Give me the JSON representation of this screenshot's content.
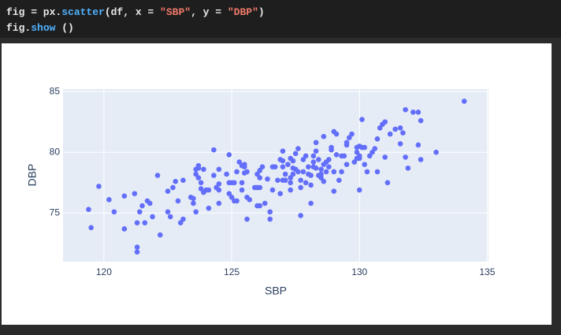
{
  "code": {
    "lines": [
      [
        "fig = px.",
        "scatter",
        "(df, x = ",
        "\"SBP\"",
        ", y = ",
        "\"DBP\"",
        ")"
      ],
      [
        "fig.",
        "show",
        " ()"
      ]
    ]
  },
  "chart_data": {
    "type": "scatter",
    "x_label": "SBP",
    "y_label": "DBP",
    "color": "#636efa",
    "grid": true,
    "xlim": [
      118.4,
      135.05
    ],
    "ylim": [
      71,
      85.2
    ],
    "xticks": [
      120,
      125,
      130,
      135
    ],
    "yticks": [
      75,
      80,
      85
    ],
    "x": [
      119.4,
      119.5,
      119.8,
      120.2,
      120.4,
      120.8,
      120.8,
      121.2,
      121.3,
      121.3,
      121.4,
      121.3,
      121.5,
      121.6,
      121.7,
      121.8,
      121.9,
      122.1,
      122.2,
      122.5,
      122.5,
      122.6,
      122.7,
      122.8,
      122.9,
      123.0,
      123.1,
      123.1,
      123.4,
      123.5,
      123.5,
      123.6,
      123.6,
      123.6,
      123.7,
      123.7,
      123.7,
      123.8,
      123.8,
      123.9,
      123.9,
      124.0,
      124.1,
      124.1,
      124.3,
      124.3,
      124.4,
      124.5,
      124.5,
      124.5,
      124.5,
      124.8,
      124.9,
      124.9,
      124.9,
      125.0,
      125.0,
      125.1,
      125.1,
      125.2,
      125.2,
      125.3,
      125.4,
      125.4,
      125.4,
      125.5,
      125.5,
      125.5,
      125.6,
      125.6,
      125.6,
      125.7,
      125.9,
      126.0,
      126.0,
      126.0,
      126.1,
      126.1,
      126.1,
      126.1,
      126.2,
      126.3,
      126.4,
      126.5,
      126.5,
      126.6,
      126.6,
      126.7,
      126.8,
      126.9,
      126.9,
      127.0,
      127.0,
      127.0,
      127.0,
      127.1,
      127.1,
      127.2,
      127.3,
      127.3,
      127.3,
      127.3,
      127.4,
      127.4,
      127.4,
      127.5,
      127.5,
      127.6,
      127.6,
      127.7,
      127.7,
      127.7,
      127.8,
      127.8,
      127.9,
      127.9,
      128.0,
      128.0,
      128.1,
      128.1,
      128.1,
      128.2,
      128.2,
      128.2,
      128.3,
      128.3,
      128.3,
      128.4,
      128.4,
      128.5,
      128.5,
      128.5,
      128.6,
      128.6,
      128.6,
      128.7,
      128.7,
      128.8,
      128.8,
      128.9,
      128.9,
      129.0,
      129.0,
      129.0,
      129.1,
      129.1,
      129.2,
      129.3,
      129.3,
      129.4,
      129.5,
      129.5,
      129.5,
      129.6,
      129.7,
      129.8,
      129.9,
      129.9,
      129.9,
      130.0,
      130.0,
      130.0,
      130.0,
      130.1,
      130.1,
      130.2,
      130.2,
      130.3,
      130.4,
      130.5,
      130.6,
      130.7,
      130.7,
      130.8,
      130.9,
      131.0,
      131.0,
      131.1,
      131.2,
      131.4,
      131.6,
      131.6,
      131.7,
      131.8,
      131.8,
      131.9,
      132.1,
      132.3,
      132.3,
      132.4,
      132.4,
      133.0,
      134.1
    ],
    "values": [
      75.3,
      73.8,
      77.2,
      76.1,
      75.1,
      76.4,
      73.7,
      76.6,
      72.2,
      71.8,
      75.1,
      74.2,
      75.6,
      74.2,
      76.0,
      75.8,
      74.7,
      78.1,
      73.2,
      76.8,
      75.1,
      74.7,
      77.1,
      77.6,
      76.0,
      74.2,
      74.5,
      77.7,
      76.3,
      76.2,
      75.8,
      75.1,
      78.2,
      78.6,
      78.7,
      77.9,
      78.9,
      77.5,
      77.0,
      76.7,
      78.6,
      76.9,
      75.4,
      76.9,
      80.2,
      78.1,
      77.1,
      78.6,
      75.8,
      76.9,
      77.4,
      78.2,
      79.8,
      77.5,
      76.6,
      76.3,
      77.5,
      77.5,
      76.0,
      76.0,
      78.4,
      79.2,
      76.9,
      78.9,
      77.5,
      78.8,
      79.0,
      78.3,
      76.3,
      74.5,
      78.4,
      76.1,
      77.1,
      77.1,
      78.2,
      75.6,
      77.1,
      78.5,
      75.6,
      77.9,
      78.8,
      75.8,
      77.8,
      75.1,
      74.5,
      78.8,
      76.9,
      78.8,
      77.7,
      76.6,
      79.4,
      78.8,
      77.7,
      79.3,
      80.1,
      78.2,
      77.7,
      79.0,
      79.5,
      77.9,
      76.9,
      77.5,
      78.7,
      79.3,
      78.2,
      78.6,
      79.9,
      80.3,
      78.4,
      74.8,
      77.7,
      77.1,
      79.4,
      78.4,
      79.7,
      77.5,
      78.2,
      78.8,
      77.3,
      75.8,
      78.1,
      79.2,
      78.8,
      79.7,
      80.1,
      80.8,
      78.7,
      78.1,
      79.4,
      77.9,
      78.6,
      78.2,
      77.6,
      81.3,
      79.0,
      79.2,
      78.4,
      78.8,
      79.4,
      80.2,
      80.4,
      81.7,
      78.4,
      76.8,
      79.8,
      81.5,
      77.7,
      78.4,
      79.7,
      79.7,
      79.0,
      80.6,
      80.8,
      81.2,
      81.5,
      79.2,
      79.5,
      80.4,
      80.0,
      79.5,
      76.9,
      80.5,
      79.7,
      82.7,
      80.4,
      79.0,
      80.4,
      78.4,
      79.7,
      80.0,
      80.3,
      78.4,
      81.1,
      82.0,
      82.3,
      82.5,
      79.6,
      77.5,
      81.5,
      81.9,
      82.0,
      80.7,
      81.6,
      83.5,
      79.6,
      78.7,
      83.3,
      80.6,
      83.3,
      82.6,
      79.4,
      80.0,
      84.2
    ]
  }
}
